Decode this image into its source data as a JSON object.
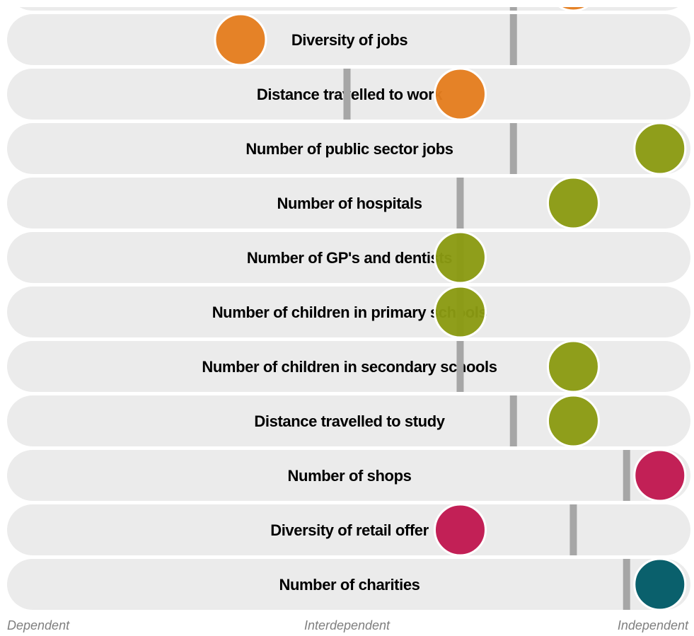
{
  "chart_data": {
    "type": "scatter",
    "scale": {
      "min": 0,
      "max": 100
    },
    "axis": {
      "left": "Dependent",
      "middle": "Interdependent",
      "right": "Independent"
    },
    "colors": {
      "orange": "#e47d1e",
      "olive": "#8a9a12",
      "crimson": "#c0174f",
      "teal": "#005a66",
      "marker": "#a6a6a6",
      "row": "#ebebeb"
    },
    "rows": [
      {
        "label": "",
        "value": 84,
        "marker": 75,
        "color": "#e47d1e"
      },
      {
        "label": "Diversity of jobs",
        "value": 34,
        "marker": 75,
        "color": "#e47d1e"
      },
      {
        "label": "Distance travelled to work",
        "value": 67,
        "marker": 50,
        "color": "#e47d1e"
      },
      {
        "label": "Number of public sector jobs",
        "value": 97,
        "marker": 75,
        "color": "#8a9a12"
      },
      {
        "label": "Number of hospitals",
        "value": 84,
        "marker": 67,
        "color": "#8a9a12"
      },
      {
        "label": "Number of GP's and dentists",
        "value": 67,
        "marker": 67,
        "color": "#8a9a12"
      },
      {
        "label": "Number of children in primary schools",
        "value": 67,
        "marker": 67,
        "color": "#8a9a12"
      },
      {
        "label": "Number of children in secondary schools",
        "value": 84,
        "marker": 67,
        "color": "#8a9a12"
      },
      {
        "label": "Distance travelled to study",
        "value": 84,
        "marker": 75,
        "color": "#8a9a12"
      },
      {
        "label": "Number of shops",
        "value": 97,
        "marker": 92,
        "color": "#c0174f"
      },
      {
        "label": "Diversity of retail offer",
        "value": 67,
        "marker": 84,
        "color": "#c0174f"
      },
      {
        "label": "Number of charities",
        "value": 97,
        "marker": 92,
        "color": "#005a66"
      }
    ]
  }
}
